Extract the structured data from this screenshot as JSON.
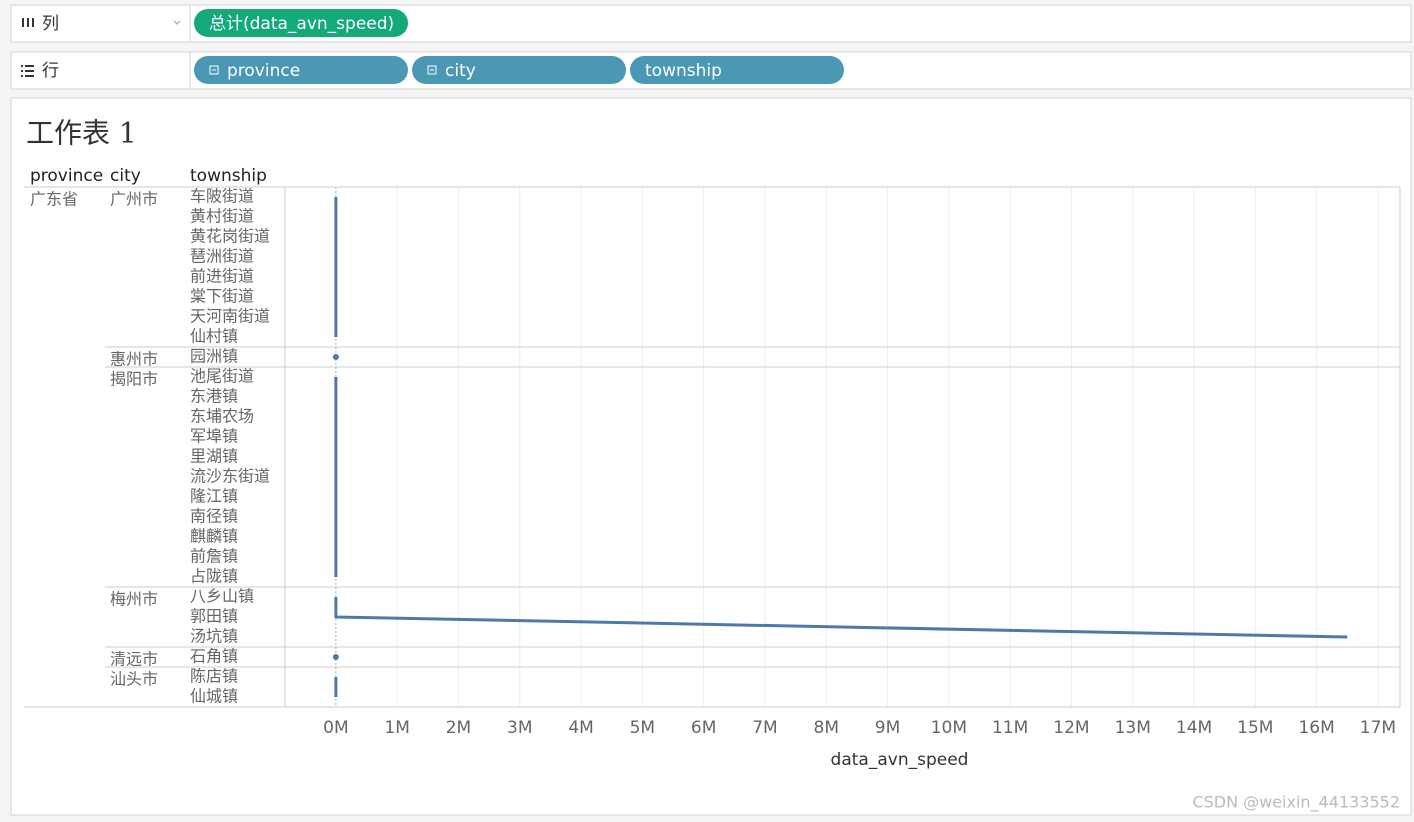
{
  "shelves": {
    "columns": {
      "label": "列",
      "pills": [
        "总计(data_avn_speed)"
      ]
    },
    "rows": {
      "label": "行",
      "pills": [
        "province",
        "city",
        "township"
      ]
    }
  },
  "chart_data": {
    "type": "line",
    "orientation": "horizontal",
    "title": "工作表 1",
    "row_headers": [
      "province",
      "city",
      "township"
    ],
    "province": "广东省",
    "x_label": "data_avn_speed",
    "color": "#4e79a7",
    "grid": true,
    "xlim": [
      -830000,
      17360000
    ],
    "xticks": [
      {
        "value": 0,
        "label": "0M"
      },
      {
        "value": 1000000,
        "label": "1M"
      },
      {
        "value": 2000000,
        "label": "2M"
      },
      {
        "value": 3000000,
        "label": "3M"
      },
      {
        "value": 4000000,
        "label": "4M"
      },
      {
        "value": 5000000,
        "label": "5M"
      },
      {
        "value": 6000000,
        "label": "6M"
      },
      {
        "value": 7000000,
        "label": "7M"
      },
      {
        "value": 8000000,
        "label": "8M"
      },
      {
        "value": 9000000,
        "label": "9M"
      },
      {
        "value": 10000000,
        "label": "10M"
      },
      {
        "value": 11000000,
        "label": "11M"
      },
      {
        "value": 12000000,
        "label": "12M"
      },
      {
        "value": 13000000,
        "label": "13M"
      },
      {
        "value": 14000000,
        "label": "14M"
      },
      {
        "value": 15000000,
        "label": "15M"
      },
      {
        "value": 16000000,
        "label": "16M"
      },
      {
        "value": 17000000,
        "label": "17M"
      }
    ],
    "series": [
      {
        "name": "广州市",
        "categories": [
          "车陂街道",
          "黄村街道",
          "黄花岗街道",
          "琶洲街道",
          "前进街道",
          "棠下街道",
          "天河南街道",
          "仙村镇"
        ],
        "values": [
          0,
          0,
          0,
          0,
          0,
          0,
          0,
          0
        ]
      },
      {
        "name": "惠州市",
        "categories": [
          "园洲镇"
        ],
        "values": [
          0
        ]
      },
      {
        "name": "揭阳市",
        "categories": [
          "池尾街道",
          "东港镇",
          "东埔农场",
          "军埠镇",
          "里湖镇",
          "流沙东街道",
          "隆江镇",
          "南径镇",
          "麒麟镇",
          "前詹镇",
          "占陇镇"
        ],
        "values": [
          0,
          0,
          0,
          0,
          0,
          0,
          0,
          0,
          0,
          0,
          0
        ]
      },
      {
        "name": "梅州市",
        "categories": [
          "八乡山镇",
          "郭田镇",
          "汤坑镇"
        ],
        "values": [
          0,
          0,
          16500000
        ]
      },
      {
        "name": "清远市",
        "categories": [
          "石角镇"
        ],
        "values": [
          0
        ]
      },
      {
        "name": "汕头市",
        "categories": [
          "陈店镇",
          "仙城镇"
        ],
        "values": [
          0,
          0
        ]
      }
    ]
  },
  "watermark": "CSDN @weixin_44133552"
}
